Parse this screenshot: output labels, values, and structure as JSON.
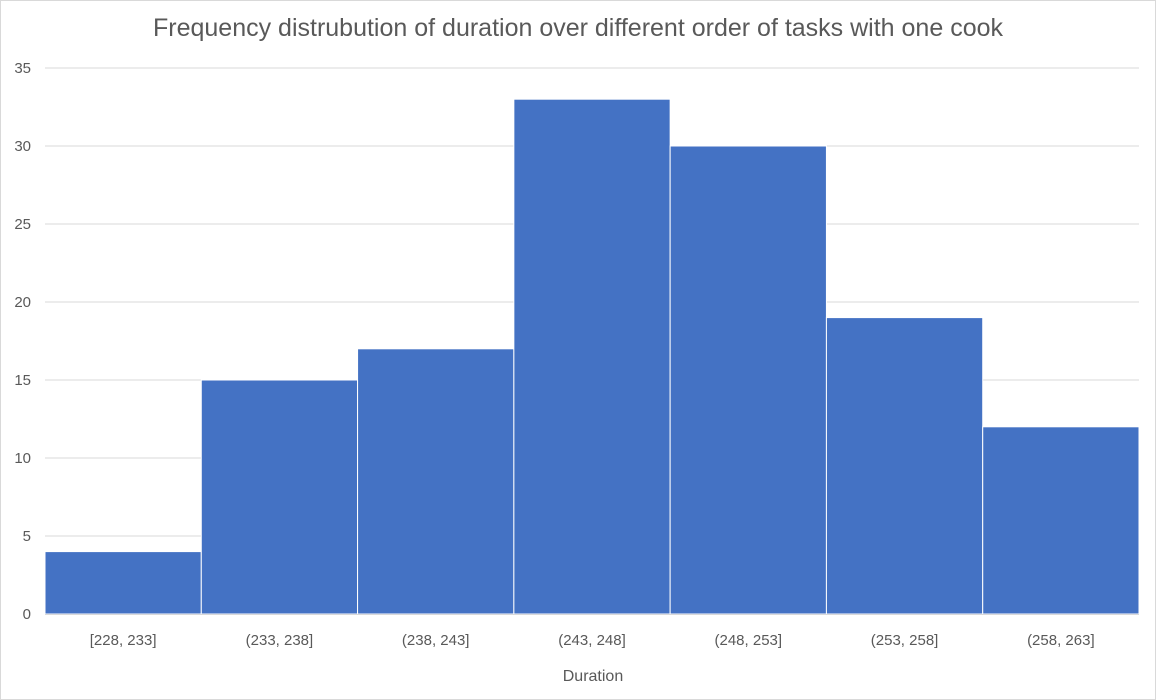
{
  "chart_data": {
    "type": "bar",
    "title": "Frequency distrubution of duration over different order of tasks with one cook",
    "xlabel": "Duration",
    "ylabel": "",
    "categories": [
      "[228, 233]",
      "(233, 238]",
      "(238, 243]",
      "(243, 248]",
      "(248, 253]",
      "(253, 258]",
      "(258, 263]"
    ],
    "values": [
      4,
      15,
      17,
      33,
      30,
      19,
      12
    ],
    "ylim": [
      0,
      35
    ],
    "yticks": [
      0,
      5,
      10,
      15,
      20,
      25,
      30,
      35
    ],
    "grid": true,
    "legend": "none",
    "bar_color": "#4472c4",
    "grid_color": "#d9d9d9",
    "text_color": "#595959"
  }
}
